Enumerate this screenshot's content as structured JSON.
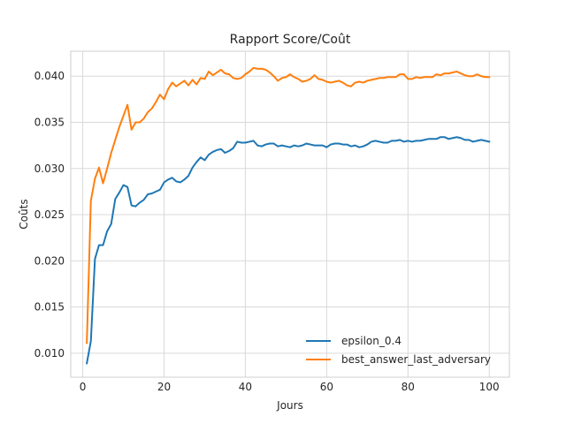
{
  "chart_data": {
    "type": "line",
    "title": "Rapport Score/Coût",
    "xlabel": "Jours",
    "ylabel": "Coûts",
    "xlim": [
      -2.95,
      104.95
    ],
    "ylim": [
      0.0074,
      0.0427
    ],
    "xticks": [
      0,
      20,
      40,
      60,
      80,
      100
    ],
    "yticks": [
      0.01,
      0.015,
      0.02,
      0.025,
      0.03,
      0.035,
      0.04
    ],
    "xtick_labels": [
      "0",
      "20",
      "40",
      "60",
      "80",
      "100"
    ],
    "ytick_labels": [
      "0.010",
      "0.015",
      "0.020",
      "0.025",
      "0.030",
      "0.035",
      "0.040"
    ],
    "grid": true,
    "legend_position": "lower right",
    "x": [
      1,
      2,
      3,
      4,
      5,
      6,
      7,
      8,
      9,
      10,
      11,
      12,
      13,
      14,
      15,
      16,
      17,
      18,
      19,
      20,
      21,
      22,
      23,
      24,
      25,
      26,
      27,
      28,
      29,
      30,
      31,
      32,
      33,
      34,
      35,
      36,
      37,
      38,
      39,
      40,
      41,
      42,
      43,
      44,
      45,
      46,
      47,
      48,
      49,
      50,
      51,
      52,
      53,
      54,
      55,
      56,
      57,
      58,
      59,
      60,
      61,
      62,
      63,
      64,
      65,
      66,
      67,
      68,
      69,
      70,
      71,
      72,
      73,
      74,
      75,
      76,
      77,
      78,
      79,
      80,
      81,
      82,
      83,
      84,
      85,
      86,
      87,
      88,
      89,
      90,
      91,
      92,
      93,
      94,
      95,
      96,
      97,
      98,
      99,
      100
    ],
    "series": [
      {
        "name": "epsilon_0.4",
        "color": "#1f77b4",
        "values": [
          0.0089,
          0.0113,
          0.0202,
          0.0217,
          0.0217,
          0.0232,
          0.024,
          0.0267,
          0.0274,
          0.0282,
          0.028,
          0.026,
          0.0259,
          0.0263,
          0.0266,
          0.0272,
          0.0273,
          0.0275,
          0.0277,
          0.0285,
          0.0288,
          0.029,
          0.0286,
          0.0285,
          0.0288,
          0.0292,
          0.0301,
          0.0307,
          0.0312,
          0.0309,
          0.0315,
          0.0318,
          0.032,
          0.0321,
          0.0317,
          0.0319,
          0.0322,
          0.0329,
          0.0328,
          0.0328,
          0.0329,
          0.033,
          0.0325,
          0.0324,
          0.0326,
          0.0327,
          0.0327,
          0.0324,
          0.0325,
          0.0324,
          0.0323,
          0.0325,
          0.0324,
          0.0325,
          0.0327,
          0.0326,
          0.0325,
          0.0325,
          0.0325,
          0.0323,
          0.0326,
          0.0327,
          0.0327,
          0.0326,
          0.0326,
          0.0324,
          0.0325,
          0.0323,
          0.0324,
          0.0326,
          0.0329,
          0.033,
          0.0329,
          0.0328,
          0.0328,
          0.033,
          0.033,
          0.0331,
          0.0329,
          0.033,
          0.0329,
          0.033,
          0.033,
          0.0331,
          0.0332,
          0.0332,
          0.0332,
          0.0334,
          0.0334,
          0.0332,
          0.0333,
          0.0334,
          0.0333,
          0.0331,
          0.0331,
          0.0329,
          0.033,
          0.0331,
          0.033,
          0.0329
        ]
      },
      {
        "name": "best_answer_last_adversary",
        "color": "#ff7f0e",
        "values": [
          0.0111,
          0.0265,
          0.0289,
          0.0301,
          0.0284,
          0.03,
          0.0317,
          0.0331,
          0.0345,
          0.0357,
          0.0369,
          0.0342,
          0.035,
          0.035,
          0.0354,
          0.0361,
          0.0365,
          0.0372,
          0.038,
          0.0375,
          0.0386,
          0.0393,
          0.0389,
          0.0392,
          0.0395,
          0.039,
          0.0396,
          0.0391,
          0.0398,
          0.0397,
          0.0405,
          0.0401,
          0.0404,
          0.0407,
          0.0403,
          0.0402,
          0.0398,
          0.0397,
          0.0398,
          0.0402,
          0.0405,
          0.0409,
          0.0408,
          0.0408,
          0.0407,
          0.0404,
          0.04,
          0.0395,
          0.0398,
          0.0399,
          0.0402,
          0.0399,
          0.0397,
          0.0394,
          0.0395,
          0.0397,
          0.0401,
          0.0397,
          0.0396,
          0.0394,
          0.0393,
          0.0394,
          0.0395,
          0.0393,
          0.039,
          0.0389,
          0.0393,
          0.0394,
          0.0393,
          0.0395,
          0.0396,
          0.0397,
          0.0398,
          0.0398,
          0.0399,
          0.0399,
          0.0399,
          0.0402,
          0.0402,
          0.0397,
          0.0397,
          0.0399,
          0.0398,
          0.0399,
          0.0399,
          0.0399,
          0.0402,
          0.0401,
          0.0403,
          0.0403,
          0.0404,
          0.0405,
          0.0403,
          0.0401,
          0.04,
          0.04,
          0.0402,
          0.04,
          0.0399,
          0.0399
        ]
      }
    ]
  }
}
